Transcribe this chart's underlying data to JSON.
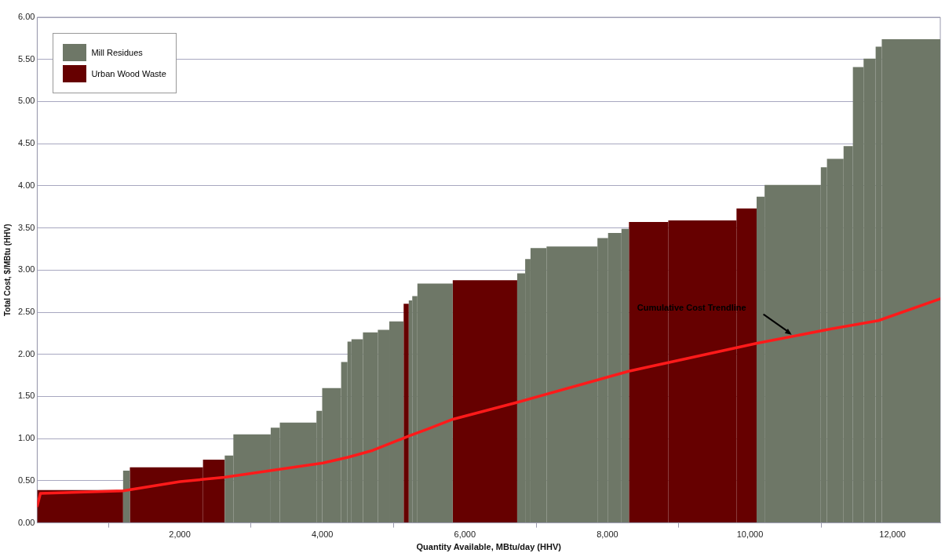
{
  "chart_data": {
    "type": "histogram",
    "xlabel": "Quantity Available, MBtu/day (HHV)",
    "ylabel": "Total Cost, $/MBtu (HHV)",
    "bins": [
      0,
      1205,
      1300,
      2326,
      2631,
      2752,
      3276,
      3404,
      3918,
      3998,
      4264,
      4353,
      4409,
      4570,
      4779,
      4940,
      5141,
      5213,
      5262,
      5334,
      5830,
      6734,
      6846,
      6921,
      7146,
      7860,
      8009,
      8197,
      8302,
      8854,
      9811,
      10093,
      10205,
      10994,
      11080,
      11313,
      11444,
      11594,
      11763,
      11849,
      12670
    ],
    "series": [
      {
        "name": "Mill Residues",
        "color": "#6e7767",
        "values": [
          null,
          0.62,
          null,
          null,
          0.8,
          1.05,
          1.13,
          1.19,
          1.33,
          1.6,
          1.91,
          2.15,
          2.18,
          2.26,
          2.29,
          2.39,
          null,
          2.64,
          2.69,
          2.84,
          null,
          2.96,
          3.13,
          3.26,
          3.28,
          3.38,
          3.44,
          3.49,
          null,
          null,
          null,
          3.87,
          4.01,
          4.22,
          4.32,
          4.47,
          5.41,
          5.51,
          5.65,
          5.74
        ]
      },
      {
        "name": "Urban Wood Waste",
        "color": "#660000",
        "values": [
          0.39,
          null,
          0.66,
          0.75,
          null,
          null,
          null,
          null,
          null,
          null,
          null,
          null,
          null,
          null,
          null,
          null,
          2.6,
          null,
          null,
          null,
          2.88,
          null,
          null,
          null,
          null,
          null,
          null,
          null,
          3.57,
          3.59,
          3.73,
          null,
          null,
          null,
          null,
          null,
          null,
          null,
          null,
          null
        ]
      },
      {
        "type": "line",
        "color": "#ff1a1a",
        "x": [
          0,
          45,
          1205,
          2004,
          2624,
          4009,
          4369,
          4707,
          5213,
          5495,
          5833,
          6733,
          8299,
          10089,
          11125,
          11800,
          12670
        ],
        "values": [
          0.2,
          0.35,
          0.38,
          0.49,
          0.54,
          0.71,
          0.78,
          0.86,
          1.03,
          1.12,
          1.23,
          1.43,
          1.8,
          2.13,
          2.3,
          2.4,
          2.66
        ]
      }
    ],
    "xlim": [
      0,
      12670
    ],
    "xticks": [
      {
        "value": 2000,
        "label": "2,000"
      },
      {
        "value": 4000,
        "label": "4,000"
      },
      {
        "value": 6000,
        "label": "6,000"
      },
      {
        "value": 8000,
        "label": "8,000"
      },
      {
        "value": 10000,
        "label": "10,000"
      },
      {
        "value": 12000,
        "label": "12,000"
      }
    ],
    "ylim": [
      0,
      6
    ],
    "yticks": [
      {
        "value": 0,
        "label": "0.00"
      },
      {
        "value": 0.5,
        "label": "0.50"
      },
      {
        "value": 1,
        "label": "1.00"
      },
      {
        "value": 1.5,
        "label": "1.50"
      },
      {
        "value": 2,
        "label": "2.00"
      },
      {
        "value": 2.5,
        "label": "2.50"
      },
      {
        "value": 3,
        "label": "3.00"
      },
      {
        "value": 3.5,
        "label": "3.50"
      },
      {
        "value": 4,
        "label": "4.00"
      },
      {
        "value": 4.5,
        "label": "4.50"
      },
      {
        "value": 5,
        "label": "5.00"
      },
      {
        "value": 5.5,
        "label": "5.50"
      },
      {
        "value": 6,
        "label": "6.00"
      }
    ],
    "grid": "y",
    "legend": "top left",
    "marker": "none",
    "line_style": "solid",
    "annotations": [
      "Cumulative Cost Trendline"
    ]
  }
}
